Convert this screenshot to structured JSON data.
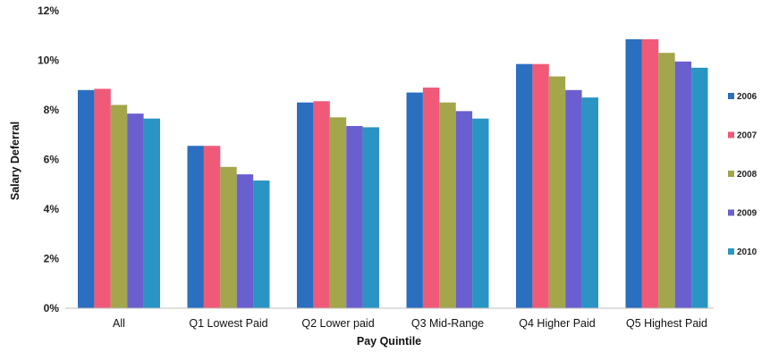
{
  "chart_data": {
    "type": "bar",
    "categories": [
      "All",
      "Q1 Lowest Paid",
      "Q2 Lower paid",
      "Q3 Mid-Range",
      "Q4 Higher Paid",
      "Q5 Highest Paid"
    ],
    "series": [
      {
        "name": "2006",
        "color": "#2a6fc0",
        "values": [
          8.8,
          6.55,
          8.3,
          8.7,
          9.85,
          10.85
        ]
      },
      {
        "name": "2007",
        "color": "#f05a78",
        "values": [
          8.85,
          6.55,
          8.35,
          8.9,
          9.85,
          10.85
        ]
      },
      {
        "name": "2008",
        "color": "#a3a64a",
        "values": [
          8.2,
          5.7,
          7.7,
          8.3,
          9.35,
          10.3
        ]
      },
      {
        "name": "2009",
        "color": "#6a5fcf",
        "values": [
          7.85,
          5.4,
          7.35,
          7.95,
          8.8,
          9.95
        ]
      },
      {
        "name": "2010",
        "color": "#2a94c4",
        "values": [
          7.65,
          5.15,
          7.3,
          7.65,
          8.5,
          9.7
        ]
      }
    ],
    "yticks": [
      "0%",
      "2%",
      "4%",
      "6%",
      "8%",
      "10%",
      "12%"
    ],
    "xlabel": "Pay Quintile",
    "ylabel": "Salary Deferral",
    "ylim": [
      0,
      12
    ],
    "grid": false,
    "legend_position": "right"
  }
}
